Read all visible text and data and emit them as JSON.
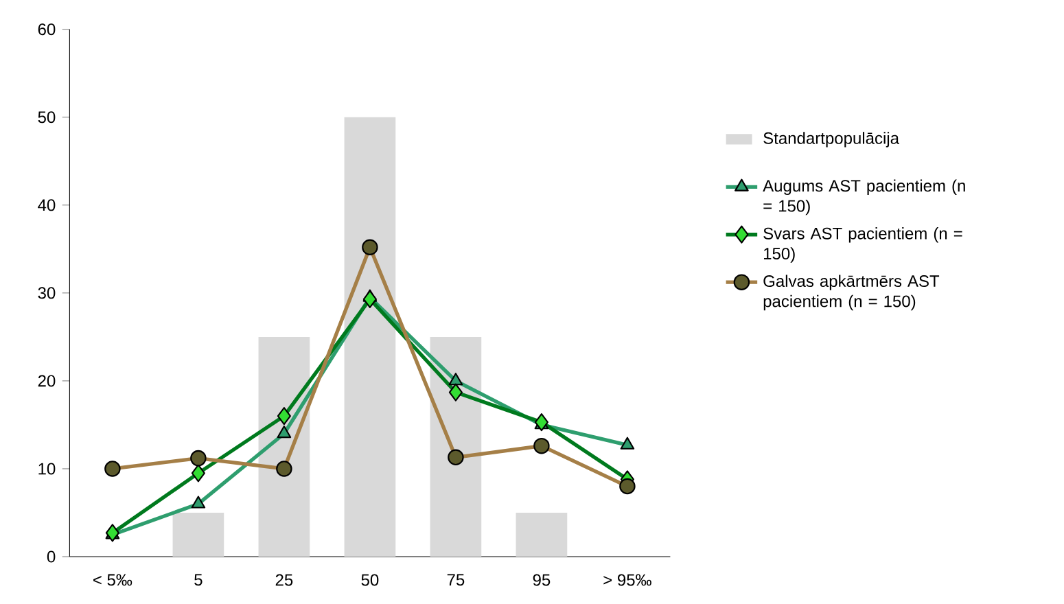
{
  "chart_data": {
    "type": "line",
    "categories": [
      "< 5‰",
      "5",
      "25",
      "50",
      "75",
      "95",
      "> 95‰"
    ],
    "series": [
      {
        "name": "Standartpopulācija",
        "type": "bar",
        "color": "#d9d9d9",
        "values": [
          0,
          5,
          25,
          50,
          25,
          5,
          0
        ]
      },
      {
        "name": "Augums AST pacientiem (n = 150)",
        "color": "#2e9e6e",
        "marker": "triangle",
        "values": [
          2.5,
          6,
          14,
          29.5,
          20,
          15,
          12.7
        ]
      },
      {
        "name": "Svars AST pacientiem (n = 150)",
        "color": "#007a1e",
        "marker": "diamond",
        "values": [
          2.7,
          9.5,
          16,
          29.3,
          18.7,
          15.3,
          8.8
        ]
      },
      {
        "name": "Galvas apkārtmērs AST pacientiem (n = 150)",
        "color": "#a57f47",
        "marker": "circle",
        "values": [
          10,
          11.2,
          10,
          35.2,
          11.3,
          12.6,
          8
        ]
      }
    ],
    "ylim": [
      0,
      60
    ],
    "yticks": [
      0,
      10,
      20,
      30,
      40,
      50,
      60
    ],
    "legend": "right"
  }
}
